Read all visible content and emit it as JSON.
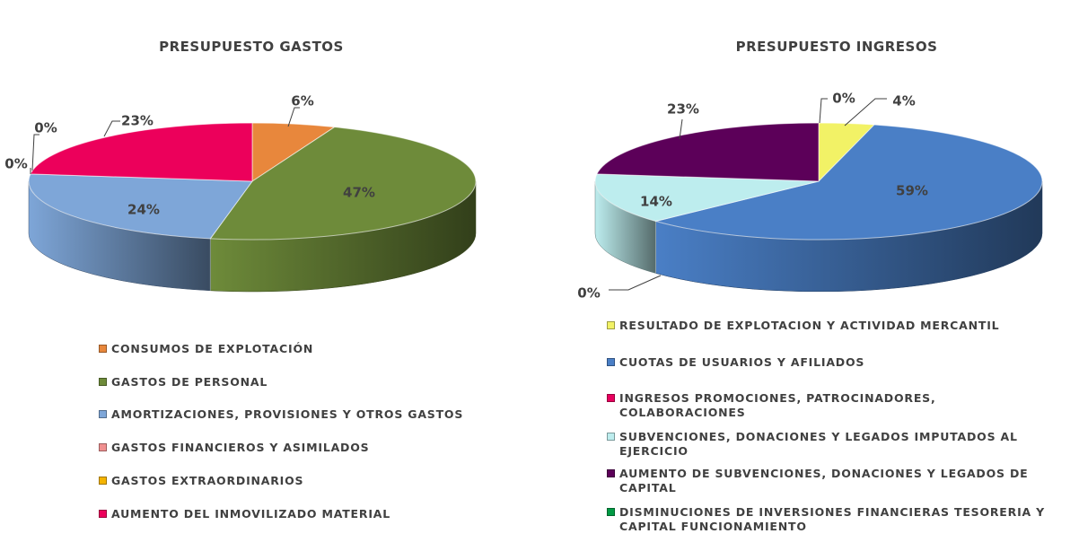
{
  "chart_data": [
    {
      "type": "pie",
      "title": "PRESUPUESTO GASTOS",
      "categories": [
        "CONSUMOS DE EXPLOTACIÓN",
        "GASTOS DE PERSONAL",
        "AMORTIZACIONES, PROVISIONES Y OTROS GASTOS",
        "GASTOS FINANCIEROS Y ASIMILADOS",
        "GASTOS EXTRAORDINARIOS",
        "AUMENTO DEL INMOVILIZADO MATERIAL"
      ],
      "values": [
        6,
        47,
        24,
        0,
        0,
        23
      ],
      "labels": [
        "6%",
        "47%",
        "24%",
        "0%",
        "0%",
        "23%"
      ],
      "colors": [
        "#E8873C",
        "#6E8B3A",
        "#7EA6D8",
        "#F09090",
        "#F4B400",
        "#EC005B"
      ],
      "legend_position": "bottom"
    },
    {
      "type": "pie",
      "title": "PRESUPUESTO INGRESOS",
      "categories": [
        "RESULTADO DE EXPLOTACION Y ACTIVIDAD MERCANTIL",
        "CUOTAS DE USUARIOS Y AFILIADOS",
        "INGRESOS PROMOCIONES, PATROCINADORES, COLABORACIONES",
        "SUBVENCIONES, DONACIONES Y LEGADOS IMPUTADOS AL EJERCICIO",
        "AUMENTO DE SUBVENCIONES, DONACIONES Y LEGADOS DE CAPITAL",
        "DISMINUCIONES DE INVERSIONES FINANCIERAS TESORERIA Y CAPITAL FUNCIONAMIENTO"
      ],
      "values": [
        4,
        59,
        0,
        14,
        23,
        0
      ],
      "labels": [
        "4%",
        "59%",
        "0%",
        "14%",
        "23%",
        "0%"
      ],
      "colors": [
        "#F2F266",
        "#4A7FC6",
        "#E8005E",
        "#BDEDEE",
        "#5C0059",
        "#009A44"
      ],
      "legend_position": "bottom"
    }
  ]
}
